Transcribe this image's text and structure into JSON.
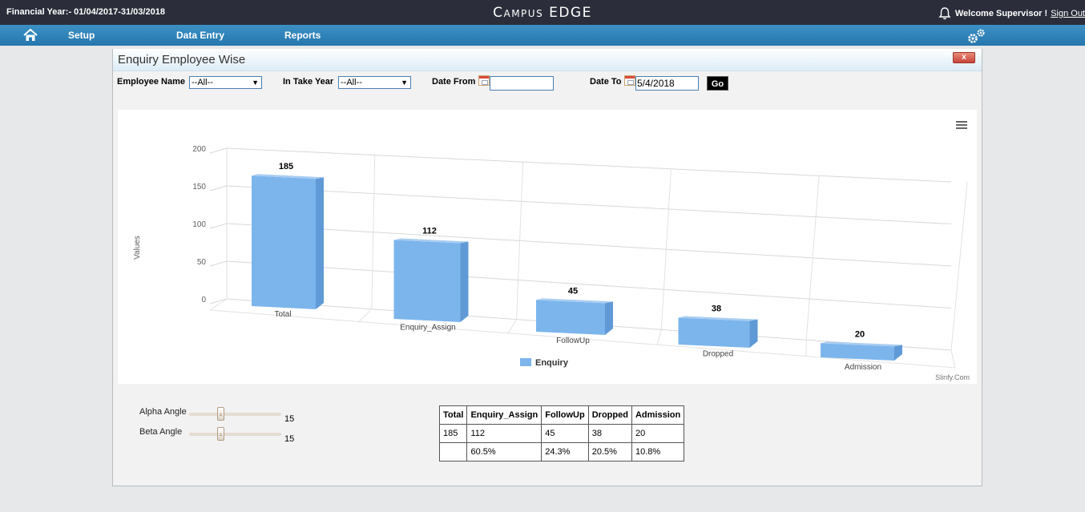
{
  "header": {
    "financial_year": "Financial Year:- 01/04/2017-31/03/2018",
    "brand": "Campus EDGE",
    "welcome": "Welcome Supervisor !",
    "sign_out": "Sign Out"
  },
  "nav": {
    "items": [
      "Setup",
      "Data Entry",
      "Reports"
    ]
  },
  "window": {
    "title": "Enquiry Employee Wise",
    "close_label": "x"
  },
  "filters": {
    "employee_label": "Employee Name",
    "employee_value": "--All--",
    "intake_label": "In Take Year",
    "intake_value": "--All--",
    "date_from_label": "Date From",
    "date_from_value": "",
    "date_to_label": "Date To",
    "date_to_value": "5/4/2018",
    "go_label": "Go"
  },
  "chart_data": {
    "type": "bar",
    "categories": [
      "Total",
      "Enquiry_Assign",
      "FollowUp",
      "Dropped",
      "Admission"
    ],
    "series": [
      {
        "name": "Enquiry",
        "values": [
          185,
          112,
          45,
          38,
          20
        ]
      }
    ],
    "ylabel": "Values",
    "yticks": [
      0,
      50,
      100,
      150,
      200
    ],
    "ylim": [
      0,
      200
    ],
    "three_d": true,
    "legend_position": "bottom",
    "credit": "Slinfy.Com",
    "bar_color": "#7cb5ec",
    "grid": true
  },
  "controls": {
    "alpha_label": "Alpha Angle",
    "alpha_value": "15",
    "beta_label": "Beta Angle",
    "beta_value": "15"
  },
  "table": {
    "headers": [
      "Total",
      "Enquiry_Assign",
      "FollowUp",
      "Dropped",
      "Admission"
    ],
    "rows": [
      [
        "185",
        "112",
        "45",
        "38",
        "20"
      ],
      [
        "",
        "60.5%",
        "24.3%",
        "20.5%",
        "10.8%"
      ]
    ]
  }
}
